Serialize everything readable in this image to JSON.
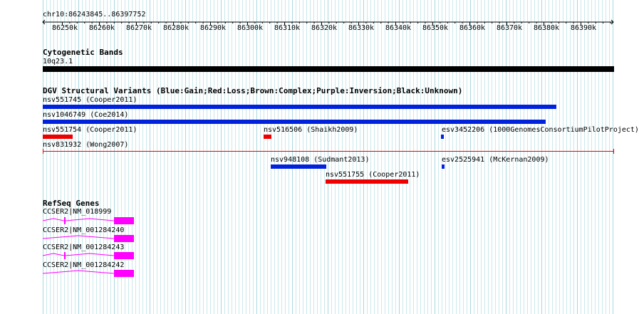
{
  "region": {
    "label": "chr10:86243845..86397752"
  },
  "ruler": {
    "ticks": [
      "86250k",
      "86260k",
      "86270k",
      "86280k",
      "86290k",
      "86300k",
      "86310k",
      "86320k",
      "86330k",
      "86340k",
      "86350k",
      "86360k",
      "86370k",
      "86380k",
      "86390k"
    ]
  },
  "tracks": {
    "cytoband": {
      "title": "Cytogenetic Bands",
      "band_label": "10q23.1"
    },
    "dgv": {
      "title": "DGV Structural Variants (Blue:Gain;Red:Loss;Brown:Complex;Purple:Inversion;Black:Unknown)",
      "features": [
        {
          "id": "nsv551745",
          "label": "nsv551745 (Cooper2011)",
          "type": "gain"
        },
        {
          "id": "nsv1046749",
          "label": "nsv1046749 (Coe2014)",
          "type": "gain"
        },
        {
          "id": "nsv551754",
          "label": "nsv551754 (Cooper2011)",
          "type": "loss"
        },
        {
          "id": "nsv516506",
          "label": "nsv516506 (Shaikh2009)",
          "type": "loss"
        },
        {
          "id": "esv3452206",
          "label": "esv3452206 (1000GenomesConsortiumPilotProject)",
          "type": "gain"
        },
        {
          "id": "nsv831932",
          "label": "nsv831932 (Wong2007)",
          "type": "loss"
        },
        {
          "id": "nsv948108",
          "label": "nsv948108 (Sudmant2013)",
          "type": "gain"
        },
        {
          "id": "esv2525941",
          "label": "esv2525941 (McKernan2009)",
          "type": "gain"
        },
        {
          "id": "nsv551755",
          "label": "nsv551755 (Cooper2011)",
          "type": "loss"
        }
      ]
    },
    "refseq": {
      "title": "RefSeq Genes",
      "transcripts": [
        {
          "label": "CCSER2|NM_018999"
        },
        {
          "label": "CCSER2|NM_001284240"
        },
        {
          "label": "CCSER2|NM_001284243"
        },
        {
          "label": "CCSER2|NM_001284242"
        }
      ]
    }
  },
  "colors": {
    "gain": "#0022dd",
    "loss": "#ee0000",
    "cytoband": "#000000",
    "gene": "#ff00ff",
    "grid": "#a8d8e0",
    "background": "#ffffff"
  }
}
